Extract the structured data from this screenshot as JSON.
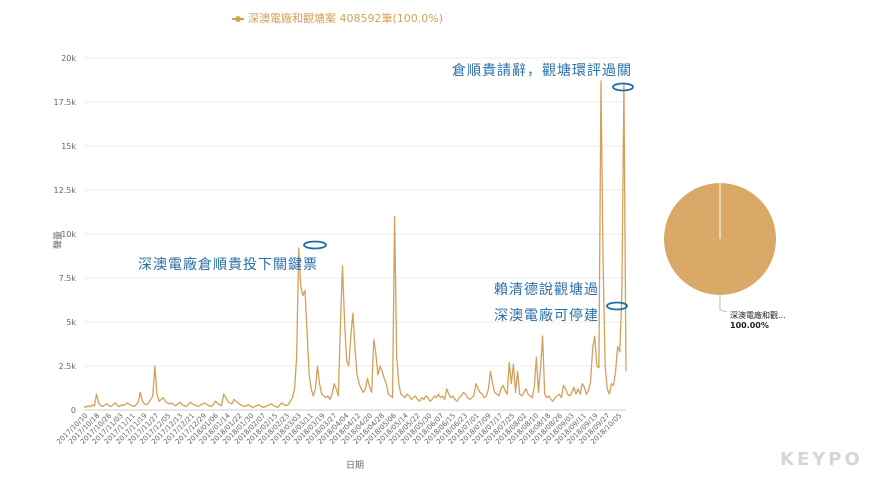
{
  "legend": {
    "label": "深澳電廠和觀塘案 408592筆(100.0%)"
  },
  "annotations": [
    {
      "text": "倉順貴請辭，觀塘環評過關"
    },
    {
      "text": "深澳電廠倉順貴投下關鍵票"
    },
    {
      "text": "賴清德說觀塘過"
    },
    {
      "text": "深澳電廠可停建"
    }
  ],
  "pie": {
    "label_line1": "深澳電廠和觀...",
    "label_line2": "100.00%"
  },
  "logo": {
    "text": "KEYPO"
  },
  "colors": {
    "series": "#d4a05a",
    "pie": "#d9a866",
    "annotation": "#2a6fa8"
  },
  "chart_data": {
    "type": "line",
    "ylabel": "聲量",
    "xlabel": "日期",
    "ylim": [
      0,
      20000
    ],
    "yticks": [
      0,
      2500,
      5000,
      7500,
      10000,
      12500,
      15000,
      17500,
      20000
    ],
    "ytick_labels": [
      "0",
      "2.5k",
      "5k",
      "7.5k",
      "10k",
      "12.5k",
      "15k",
      "17.5k",
      "20k"
    ],
    "x_tick_labels": [
      "2017/10/10",
      "2017/10/18",
      "2017/10/26",
      "2017/11/03",
      "2017/11/11",
      "2017/11/19",
      "2017/11/27",
      "2017/12/05",
      "2017/12/13",
      "2017/12/21",
      "2017/12/29",
      "2018/01/06",
      "2018/01/14",
      "2018/01/22",
      "2018/01/30",
      "2018/02/07",
      "2018/02/15",
      "2018/02/23",
      "2018/03/03",
      "2018/03/11",
      "2018/03/19",
      "2018/03/27",
      "2018/04/04",
      "2018/04/12",
      "2018/04/20",
      "2018/04/28",
      "2018/05/06",
      "2018/05/14",
      "2018/05/22",
      "2018/05/30",
      "2018/06/07",
      "2018/06/15",
      "2018/06/23",
      "2018/07/01",
      "2018/07/09",
      "2018/07/17",
      "2018/07/25",
      "2018/08/02",
      "2018/08/10",
      "2018/08/18",
      "2018/08/26",
      "2018/09/03",
      "2018/09/11",
      "2018/09/19",
      "2018/09/27",
      "2018/10/05"
    ],
    "series": [
      {
        "values": [
          200,
          150,
          250,
          180,
          300,
          220,
          900,
          400,
          250,
          200,
          300,
          350,
          250,
          200,
          300,
          400,
          250,
          200,
          300,
          250,
          350,
          400,
          300,
          250,
          200,
          300,
          450,
          1000,
          500,
          350,
          300,
          400,
          600,
          800,
          2500,
          900,
          500,
          600,
          700,
          500,
          400,
          350,
          400,
          300,
          250,
          350,
          450,
          300,
          250,
          200,
          300,
          450,
          350,
          300,
          250,
          200,
          300,
          350,
          400,
          300,
          250,
          200,
          300,
          500,
          400,
          300,
          250,
          900,
          700,
          500,
          400,
          350,
          600,
          500,
          400,
          300,
          250,
          200,
          250,
          300,
          200,
          150,
          200,
          250,
          300,
          200,
          150,
          200,
          250,
          300,
          350,
          250,
          200,
          150,
          300,
          400,
          300,
          250,
          300,
          500,
          700,
          1200,
          3000,
          9200,
          7000,
          6500,
          6800,
          4500,
          2000,
          1200,
          800,
          1200,
          2500,
          1500,
          900,
          800,
          700,
          800,
          600,
          900,
          1500,
          1200,
          800,
          4800,
          8200,
          5000,
          2800,
          2500,
          4200,
          5500,
          3500,
          2000,
          1500,
          1200,
          1000,
          1200,
          1800,
          1300,
          1000,
          4000,
          3200,
          2000,
          2500,
          2200,
          1800,
          1500,
          900,
          800,
          700,
          11000,
          3000,
          1500,
          900,
          800,
          700,
          900,
          800,
          600,
          700,
          800,
          600,
          500,
          700,
          600,
          800,
          700,
          500,
          600,
          800,
          700,
          900,
          700,
          800,
          600,
          1200,
          900,
          700,
          800,
          600,
          500,
          700,
          800,
          1000,
          900,
          700,
          600,
          700,
          800,
          1500,
          1200,
          1000,
          900,
          700,
          800,
          1200,
          2200,
          1500,
          1000,
          900,
          800,
          1200,
          1400,
          1100,
          900,
          2700,
          1500,
          2600,
          1000,
          2200,
          900,
          800,
          1000,
          1200,
          900,
          800,
          700,
          1300,
          3000,
          1000,
          2400,
          4200,
          900,
          700,
          800,
          600,
          500,
          700,
          800,
          900,
          700,
          1400,
          1200,
          900,
          800,
          1000,
          1300,
          900,
          1200,
          900,
          1500,
          1300,
          900,
          1100,
          1600,
          3500,
          4200,
          2500,
          2400,
          18700,
          8500,
          2500,
          1200,
          900,
          1500,
          1400,
          2200,
          3600,
          3300,
          6400,
          18500,
          2200
        ]
      }
    ]
  }
}
